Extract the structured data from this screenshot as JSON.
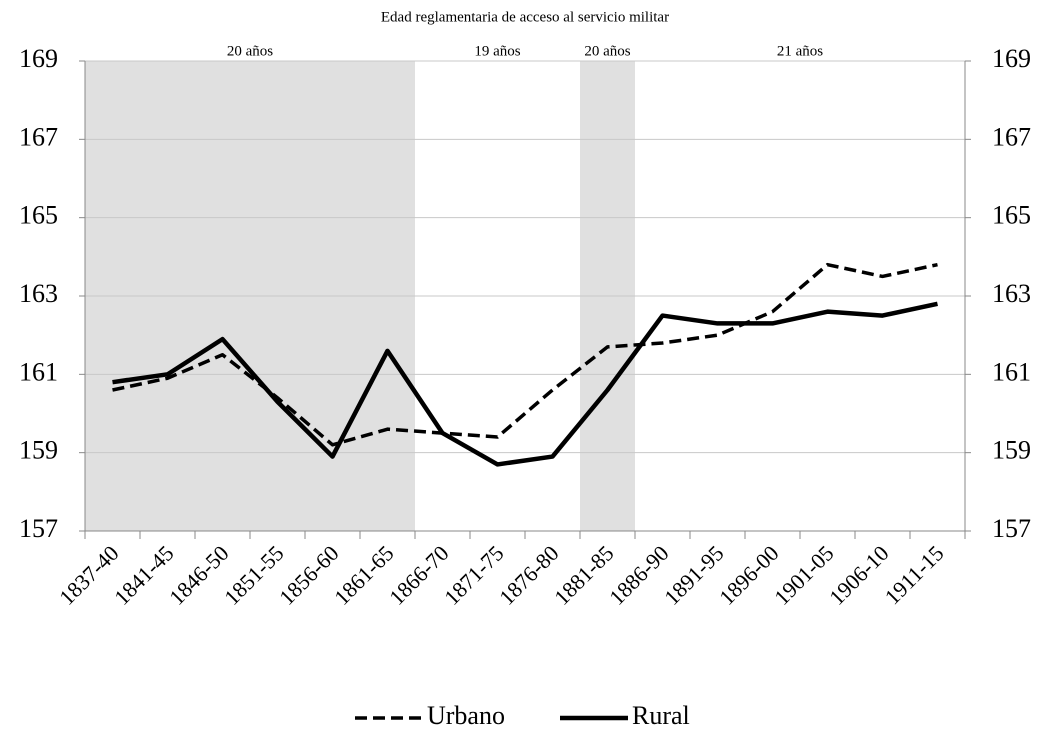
{
  "chart_data": {
    "type": "line",
    "title": "Edad reglamentaria de acceso al servicio militar",
    "categories": [
      "1837-40",
      "1841-45",
      "1846-50",
      "1851-55",
      "1856-60",
      "1861-65",
      "1866-70",
      "1871-75",
      "1876-80",
      "1881-85",
      "1886-90",
      "1891-95",
      "1896-00",
      "1901-05",
      "1906-10",
      "1911-15"
    ],
    "series": [
      {
        "name": "Urbano",
        "color": "#000000",
        "dashed": true,
        "values": [
          160.6,
          160.9,
          161.5,
          160.4,
          159.2,
          159.6,
          159.5,
          159.4,
          160.6,
          161.7,
          161.8,
          162.0,
          162.6,
          163.8,
          163.5,
          163.8
        ]
      },
      {
        "name": "Rural",
        "color": "#000000",
        "dashed": false,
        "values": [
          160.8,
          161.0,
          161.9,
          160.3,
          158.9,
          161.6,
          159.5,
          158.7,
          158.9,
          160.6,
          162.5,
          162.3,
          162.3,
          162.6,
          162.5,
          162.8
        ]
      }
    ],
    "periods": [
      {
        "text": "20 años",
        "from": "1837-40",
        "to": "1861-65",
        "shaded": true
      },
      {
        "text": "19 años",
        "from": "1866-70",
        "to": "1876-80",
        "shaded": false
      },
      {
        "text": "20 años",
        "from": "1881-85",
        "to": "1881-85",
        "shaded": true
      },
      {
        "text": "21 años",
        "from": "1886-90",
        "to": "1911-15",
        "shaded": false
      }
    ],
    "ylim": [
      157,
      169
    ],
    "yticks": [
      157,
      159,
      161,
      163,
      165,
      167,
      169
    ],
    "grid": true,
    "legend": "bottom"
  }
}
